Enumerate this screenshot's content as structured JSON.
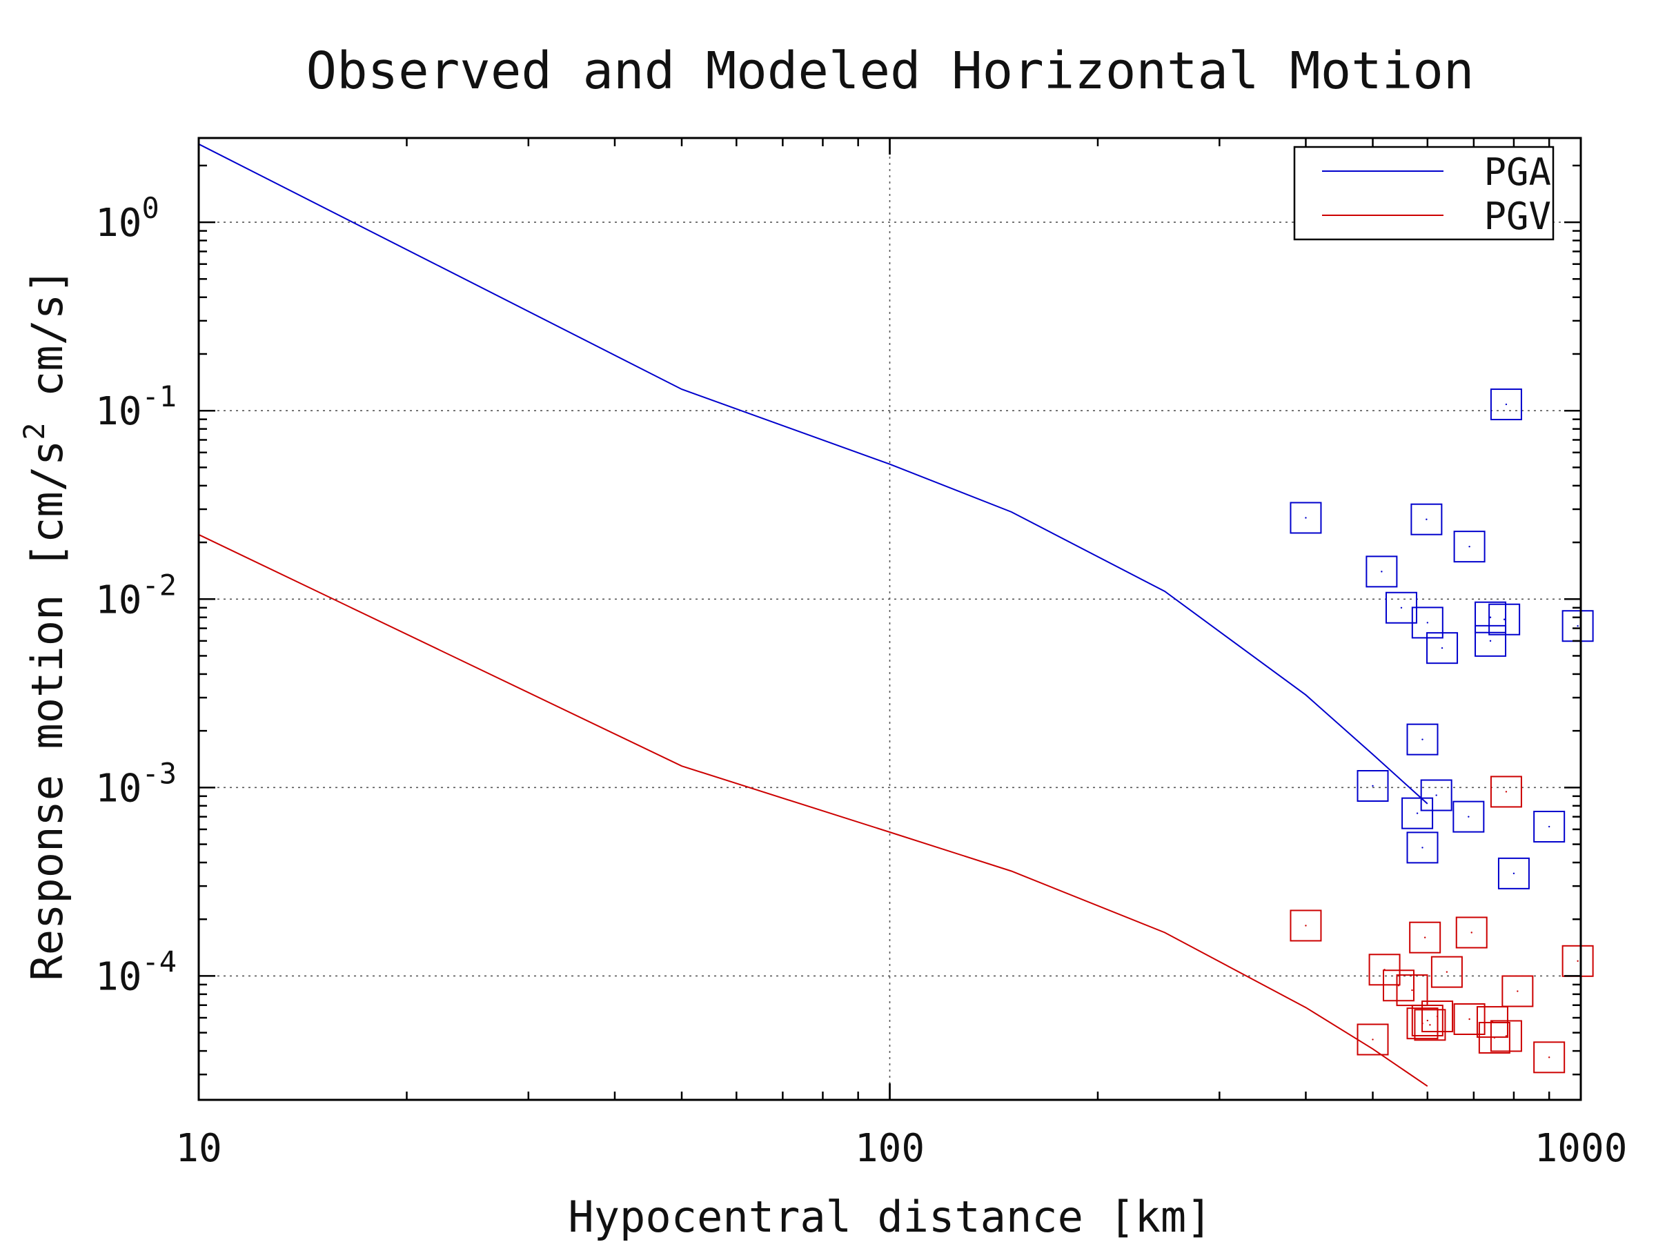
{
  "chart_data": {
    "type": "line",
    "title": "Observed and Modeled Horizontal Motion",
    "xlabel": "Hypocentral distance [km]",
    "ylabel_parts": [
      "Response motion  [cm/s",
      "2",
      "  cm/s]"
    ],
    "x_scale": "log",
    "y_scale": "log",
    "xlim": [
      10,
      1000
    ],
    "ylim": [
      2.2e-05,
      2.8
    ],
    "x_ticks": [
      {
        "value": 10,
        "label": "10"
      },
      {
        "value": 100,
        "label": "100"
      },
      {
        "value": 1000,
        "label": "1000"
      }
    ],
    "y_ticks": [
      {
        "value": 1,
        "base": "10",
        "exp": "0"
      },
      {
        "value": 0.1,
        "base": "10",
        "exp": "-1"
      },
      {
        "value": 0.01,
        "base": "10",
        "exp": "-2"
      },
      {
        "value": 0.001,
        "base": "10",
        "exp": "-3"
      },
      {
        "value": 0.0001,
        "base": "10",
        "exp": "-4"
      }
    ],
    "grid": true,
    "legend_position": "top-right",
    "series": [
      {
        "name": "PGA",
        "color": "#0000cc",
        "line": [
          [
            10,
            2.6
          ],
          [
            50,
            0.13
          ],
          [
            100,
            0.052
          ],
          [
            150,
            0.029
          ],
          [
            250,
            0.011
          ],
          [
            400,
            0.0031
          ],
          [
            500,
            0.0015
          ],
          [
            600,
            0.00082
          ]
        ],
        "observed": [
          [
            400,
            0.027
          ],
          [
            515,
            0.014
          ],
          [
            550,
            0.009
          ],
          [
            598,
            0.0265
          ],
          [
            600,
            0.0075
          ],
          [
            630,
            0.0055
          ],
          [
            690,
            0.019
          ],
          [
            740,
            0.008
          ],
          [
            740,
            0.006
          ],
          [
            775,
            0.0078
          ],
          [
            780,
            0.108
          ],
          [
            500,
            0.00102
          ],
          [
            580,
            0.00073
          ],
          [
            590,
            0.0018
          ],
          [
            590,
            0.00048
          ],
          [
            618,
            0.00091
          ],
          [
            688,
            0.0007
          ],
          [
            800,
            0.00035
          ],
          [
            900,
            0.00062
          ],
          [
            990,
            0.0072
          ]
        ]
      },
      {
        "name": "PGV",
        "color": "#cc0000",
        "line": [
          [
            10,
            0.022
          ],
          [
            50,
            0.0013
          ],
          [
            100,
            0.00058
          ],
          [
            150,
            0.00036
          ],
          [
            250,
            0.00017
          ],
          [
            400,
            6.8e-05
          ],
          [
            500,
            4.1e-05
          ],
          [
            600,
            2.6e-05
          ]
        ],
        "observed": [
          [
            400,
            0.000185
          ],
          [
            500,
            4.6e-05
          ],
          [
            520,
            0.000108
          ],
          [
            545,
            8.9e-05
          ],
          [
            570,
            8.4e-05
          ],
          [
            590,
            5.6e-05
          ],
          [
            595,
            0.00016
          ],
          [
            600,
            5.8e-05
          ],
          [
            605,
            5.5e-05
          ],
          [
            620,
            6.1e-05
          ],
          [
            640,
            0.000105
          ],
          [
            690,
            5.9e-05
          ],
          [
            695,
            0.00017
          ],
          [
            745,
            5.7e-05
          ],
          [
            750,
            4.7e-05
          ],
          [
            780,
            0.00095
          ],
          [
            780,
            4.8e-05
          ],
          [
            810,
            8.3e-05
          ],
          [
            900,
            3.7e-05
          ],
          [
            990,
            0.00012
          ]
        ]
      }
    ]
  }
}
